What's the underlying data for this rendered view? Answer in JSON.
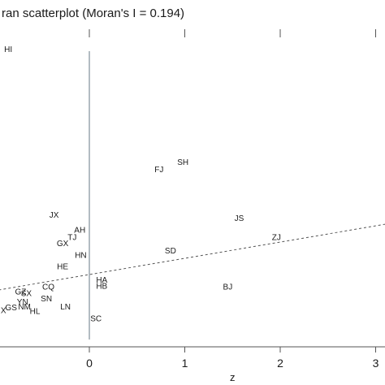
{
  "chart_data": {
    "type": "scatter",
    "title": "ran scatterplot (Moran's I = 0.194)",
    "xlabel": "z",
    "ylabel": "",
    "x_ticks": [
      0,
      1,
      2,
      3
    ],
    "grid": false,
    "legend": "none",
    "colors": {
      "axis_line": "#9aa6ad",
      "fit_line": "#555555",
      "text": "#1a1a1a"
    },
    "slope": 0.194,
    "fit_line_style": "dashed",
    "vertical_reference_x": 0,
    "points": [
      {
        "label": "HI",
        "x": -0.85,
        "y": 2.7
      },
      {
        "label": "SH",
        "x": 0.98,
        "y": 1.35
      },
      {
        "label": "FJ",
        "x": 0.73,
        "y": 1.26
      },
      {
        "label": "JX",
        "x": -0.37,
        "y": 0.72
      },
      {
        "label": "JS",
        "x": 1.57,
        "y": 0.68
      },
      {
        "label": "AH",
        "x": -0.1,
        "y": 0.54
      },
      {
        "label": "TJ",
        "x": -0.18,
        "y": 0.45
      },
      {
        "label": "ZJ",
        "x": 1.96,
        "y": 0.45
      },
      {
        "label": "GX",
        "x": -0.28,
        "y": 0.38
      },
      {
        "label": "SD",
        "x": 0.85,
        "y": 0.29
      },
      {
        "label": "HN",
        "x": -0.09,
        "y": 0.24
      },
      {
        "label": "HE",
        "x": -0.28,
        "y": 0.1
      },
      {
        "label": "HA",
        "x": 0.13,
        "y": -0.06
      },
      {
        "label": "HB",
        "x": 0.13,
        "y": -0.13
      },
      {
        "label": "BJ",
        "x": 1.45,
        "y": -0.14
      },
      {
        "label": "CQ",
        "x": -0.43,
        "y": -0.14
      },
      {
        "label": "GZ",
        "x": -0.72,
        "y": -0.2
      },
      {
        "label": "SX",
        "x": -0.66,
        "y": -0.22
      },
      {
        "label": "SN",
        "x": -0.45,
        "y": -0.28
      },
      {
        "label": "YN",
        "x": -0.7,
        "y": -0.32
      },
      {
        "label": "NM",
        "x": -0.68,
        "y": -0.38
      },
      {
        "label": "LN",
        "x": -0.25,
        "y": -0.38
      },
      {
        "label": "GS",
        "x": -0.82,
        "y": -0.39
      },
      {
        "label": "HL",
        "x": -0.57,
        "y": -0.43
      },
      {
        "label": "X",
        "x": -0.9,
        "y": -0.42
      },
      {
        "label": "SC",
        "x": 0.07,
        "y": -0.52
      }
    ]
  }
}
